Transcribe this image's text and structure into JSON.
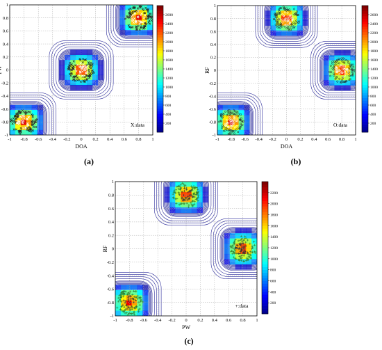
{
  "figure": {
    "panel_labels": [
      "(a)",
      "(b)",
      "(c)"
    ]
  },
  "colormap": [
    "#00008f",
    "#0000ff",
    "#007fff",
    "#00ffff",
    "#7fff7f",
    "#ffff00",
    "#ff7f00",
    "#ff0000",
    "#7f0000"
  ],
  "contour_color": "#2a2a9a",
  "chart_data": [
    {
      "panel": "(a)",
      "type": "heatmap",
      "xlabel": "DOA",
      "ylabel": "PW",
      "xlim": [
        -1,
        1
      ],
      "ylim": [
        -1,
        1
      ],
      "x_ticks": [
        "-1",
        "-0.8",
        "-0.6",
        "-0.4",
        "-0.2",
        "0",
        "0.2",
        "0.4",
        "0.6",
        "0.8",
        "1"
      ],
      "y_ticks": [
        "-1",
        "-0.8",
        "-0.6",
        "-0.4",
        "-0.2",
        "0",
        "0.2",
        "0.4",
        "0.6",
        "0.8",
        "1"
      ],
      "grid": true,
      "legend": {
        "text": "X:data",
        "position": "bottom-right"
      },
      "clusters": [
        {
          "x": -0.8,
          "y": -0.8,
          "half_width": 0.2,
          "half_height": 0.2,
          "peak": 2600
        },
        {
          "x": 0.0,
          "y": 0.0,
          "half_width": 0.2,
          "half_height": 0.2,
          "peak": 2600
        },
        {
          "x": 0.8,
          "y": 0.8,
          "half_width": 0.2,
          "half_height": 0.2,
          "peak": 2600
        }
      ],
      "colorbar": {
        "ticks": [
          "200",
          "400",
          "600",
          "800",
          "1000",
          "1200",
          "1400",
          "1600",
          "1800",
          "2000",
          "2200",
          "2400",
          "2600"
        ],
        "range": [
          0,
          2800
        ]
      }
    },
    {
      "panel": "(b)",
      "type": "heatmap",
      "xlabel": "DOA",
      "ylabel": "RF",
      "xlim": [
        -1,
        1
      ],
      "ylim": [
        -1,
        1
      ],
      "x_ticks": [
        "-1",
        "-0.8",
        "-0.6",
        "-0.4",
        "-0.2",
        "0",
        "0.2",
        "0.4",
        "0.6",
        "0.8",
        "1"
      ],
      "y_ticks": [
        "-1",
        "-0.8",
        "-0.6",
        "-0.4",
        "-0.2",
        "0",
        "0.2",
        "0.4",
        "0.6",
        "0.8",
        "1"
      ],
      "grid": true,
      "legend": {
        "text": "O:data",
        "position": "bottom-right"
      },
      "clusters": [
        {
          "x": -0.8,
          "y": -0.8,
          "half_width": 0.2,
          "half_height": 0.2,
          "peak": 2600
        },
        {
          "x": 0.0,
          "y": 0.8,
          "half_width": 0.2,
          "half_height": 0.2,
          "peak": 2600
        },
        {
          "x": 0.8,
          "y": 0.0,
          "half_width": 0.2,
          "half_height": 0.2,
          "peak": 2600
        }
      ],
      "colorbar": {
        "ticks": [
          "200",
          "400",
          "600",
          "800",
          "1000",
          "1200",
          "1400",
          "1600",
          "1800",
          "2000",
          "2200",
          "2400",
          "2600"
        ],
        "range": [
          0,
          2800
        ]
      }
    },
    {
      "panel": "(c)",
      "type": "heatmap",
      "xlabel": "PW",
      "ylabel": "RF",
      "xlim": [
        -1,
        1
      ],
      "ylim": [
        -1,
        1
      ],
      "x_ticks": [
        "-1",
        "-0.8",
        "-0.6",
        "-0.4",
        "-0.2",
        "0",
        "0.2",
        "0.4",
        "0.6",
        "0.8",
        "1"
      ],
      "y_ticks": [
        "-1",
        "-0.8",
        "-0.6",
        "-0.4",
        "-0.2",
        "0",
        "0.2",
        "0.4",
        "0.6",
        "0.8",
        "1"
      ],
      "grid": true,
      "legend": {
        "text": "+:data",
        "position": "bottom-right"
      },
      "clusters": [
        {
          "x": -0.8,
          "y": -0.8,
          "half_width": 0.2,
          "half_height": 0.2,
          "peak": 2200
        },
        {
          "x": 0.0,
          "y": 0.8,
          "half_width": 0.2,
          "half_height": 0.2,
          "peak": 2200
        },
        {
          "x": 0.8,
          "y": 0.0,
          "half_width": 0.2,
          "half_height": 0.2,
          "peak": 2200
        }
      ],
      "colorbar": {
        "ticks": [
          "200",
          "400",
          "600",
          "800",
          "1000",
          "1200",
          "1400",
          "1600",
          "1800",
          "2000",
          "2200"
        ],
        "range": [
          0,
          2400
        ]
      }
    }
  ]
}
